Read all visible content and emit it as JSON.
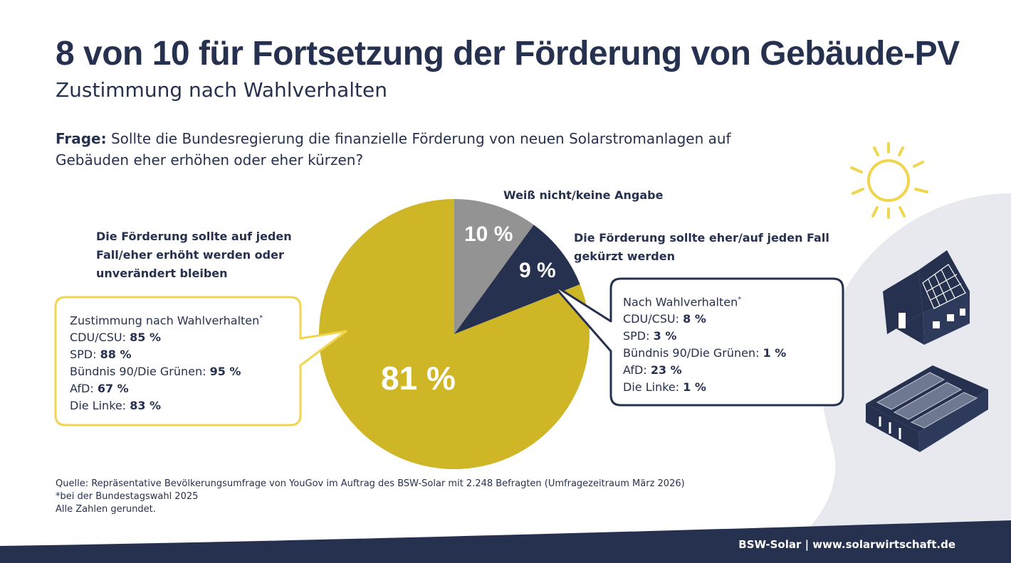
{
  "header": {
    "title": "8 von 10 für Fortsetzung der Förderung von Gebäude-PV",
    "subtitle": "Zustimmung nach Wahlverhalten"
  },
  "question": {
    "label": "Frage:",
    "text": "Sollte die Bundesregierung die finanzielle Förderung von neuen Solarstromanlagen auf Gebäuden eher erhöhen oder eher kürzen?"
  },
  "chart_data": {
    "type": "pie",
    "slices": [
      {
        "label": "Die Förderung sollte auf jeden Fall/eher erhöht werden oder unverändert bleiben",
        "value": 81,
        "value_label": "81 %",
        "color": "#cfb627"
      },
      {
        "label": "Weiß nicht/keine Angabe",
        "value": 10,
        "value_label": "10 %",
        "color": "#939393"
      },
      {
        "label": "Die Förderung sollte eher/auf jeden Fall gekürzt werden",
        "value": 9,
        "value_label": "9 %",
        "color": "#263150"
      }
    ],
    "breakdown_support": {
      "heading": "Zustimmung nach Wahlverhalten",
      "marker": "*",
      "rows": [
        {
          "party": "CDU/CSU:",
          "value": "85 %"
        },
        {
          "party": "SPD:",
          "value": "88 %"
        },
        {
          "party": "Bündnis 90/Die Grünen:",
          "value": "95 %"
        },
        {
          "party": "AfD:",
          "value": "67 %"
        },
        {
          "party": "Die Linke:",
          "value": "83 %"
        }
      ]
    },
    "breakdown_cut": {
      "heading": "Nach Wahlverhalten",
      "marker": "*",
      "rows": [
        {
          "party": "CDU/CSU:",
          "value": "8 %"
        },
        {
          "party": "SPD:",
          "value": "3 %"
        },
        {
          "party": "Bündnis 90/Die Grünen:",
          "value": "1 %"
        },
        {
          "party": "AfD:",
          "value": "23 %"
        },
        {
          "party": "Die Linke:",
          "value": "1 %"
        }
      ]
    }
  },
  "footer": {
    "source": "Quelle: Repräsentative Bevölkerungsumfrage von YouGov im Auftrag des BSW-Solar mit 2.248 Befragten (Umfragezeitraum März 2026)",
    "note": "*bei der Bundestagswahl 2025",
    "rounding": "Alle Zahlen gerundet."
  },
  "brand": "BSW-Solar | www.solarwirtschaft.de",
  "colors": {
    "navy": "#263150",
    "gold": "#cfb627",
    "grey": "#939393",
    "pale": "#e8e9ee",
    "sun": "#f1d54f"
  },
  "icons": [
    "sun-icon",
    "house-with-solar-roof-icon",
    "warehouse-with-solar-roof-icon"
  ]
}
